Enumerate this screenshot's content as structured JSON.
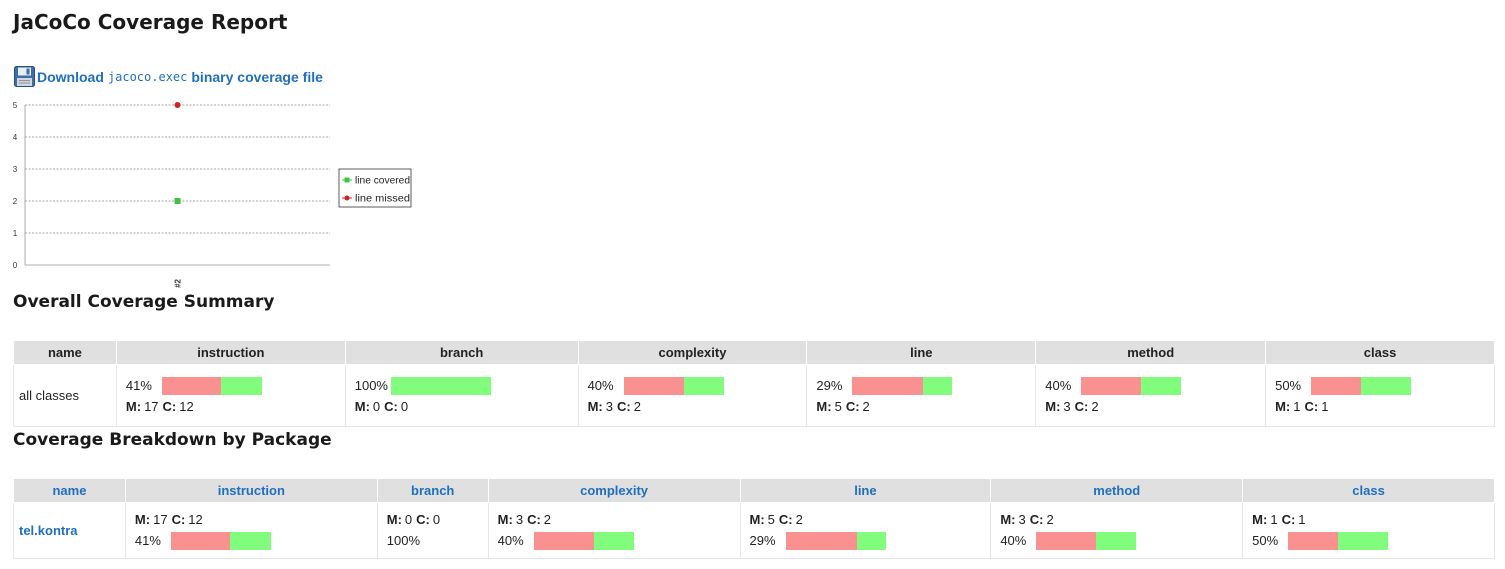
{
  "title": "JaCoCo Coverage Report",
  "download": {
    "prefix": "Download",
    "code": "jacoco.exec",
    "suffix": "binary coverage file",
    "icon": "floppy-disk-icon"
  },
  "chart_data": {
    "type": "scatter",
    "categories": [
      "#2"
    ],
    "ylim": [
      0,
      5
    ],
    "yticks": [
      "0",
      "1",
      "2",
      "3",
      "4",
      "5"
    ],
    "grid": true,
    "legend_position": "right",
    "series": [
      {
        "name": "line covered",
        "values": [
          2
        ],
        "color": "#3ec43e",
        "marker": "square"
      },
      {
        "name": "line missed",
        "values": [
          5
        ],
        "color": "#d42020",
        "marker": "circle"
      }
    ]
  },
  "summary": {
    "heading": "Overall Coverage Summary",
    "headers": [
      "name",
      "instruction",
      "branch",
      "complexity",
      "line",
      "method",
      "class"
    ],
    "row": {
      "name": "all classes",
      "cells": [
        {
          "pct": "41%",
          "covered": 0.41,
          "m_label": "M:",
          "m": "17",
          "c_label": "C:",
          "c": "12"
        },
        {
          "pct": "100%",
          "covered": 1.0,
          "m_label": "M:",
          "m": "0",
          "c_label": "C:",
          "c": "0"
        },
        {
          "pct": "40%",
          "covered": 0.4,
          "m_label": "M:",
          "m": "3",
          "c_label": "C:",
          "c": "2"
        },
        {
          "pct": "29%",
          "covered": 0.29,
          "m_label": "M:",
          "m": "5",
          "c_label": "C:",
          "c": "2"
        },
        {
          "pct": "40%",
          "covered": 0.4,
          "m_label": "M:",
          "m": "3",
          "c_label": "C:",
          "c": "2"
        },
        {
          "pct": "50%",
          "covered": 0.5,
          "m_label": "M:",
          "m": "1",
          "c_label": "C:",
          "c": "1"
        }
      ]
    }
  },
  "breakdown": {
    "heading": "Coverage Breakdown by Package",
    "headers": [
      "name",
      "instruction",
      "branch",
      "complexity",
      "line",
      "method",
      "class"
    ],
    "row": {
      "name": "tel.kontra",
      "cells": [
        {
          "pct": "41%",
          "covered": 0.41,
          "bar": true,
          "m_label": "M:",
          "m": "17",
          "c_label": "C:",
          "c": "12"
        },
        {
          "pct": "100%",
          "covered": 1.0,
          "bar": false,
          "m_label": "M:",
          "m": "0",
          "c_label": "C:",
          "c": "0"
        },
        {
          "pct": "40%",
          "covered": 0.4,
          "bar": true,
          "m_label": "M:",
          "m": "3",
          "c_label": "C:",
          "c": "2"
        },
        {
          "pct": "29%",
          "covered": 0.29,
          "bar": true,
          "m_label": "M:",
          "m": "5",
          "c_label": "C:",
          "c": "2"
        },
        {
          "pct": "40%",
          "covered": 0.4,
          "bar": true,
          "m_label": "M:",
          "m": "3",
          "c_label": "C:",
          "c": "2"
        },
        {
          "pct": "50%",
          "covered": 0.5,
          "bar": true,
          "m_label": "M:",
          "m": "1",
          "c_label": "C:",
          "c": "1"
        }
      ]
    }
  }
}
